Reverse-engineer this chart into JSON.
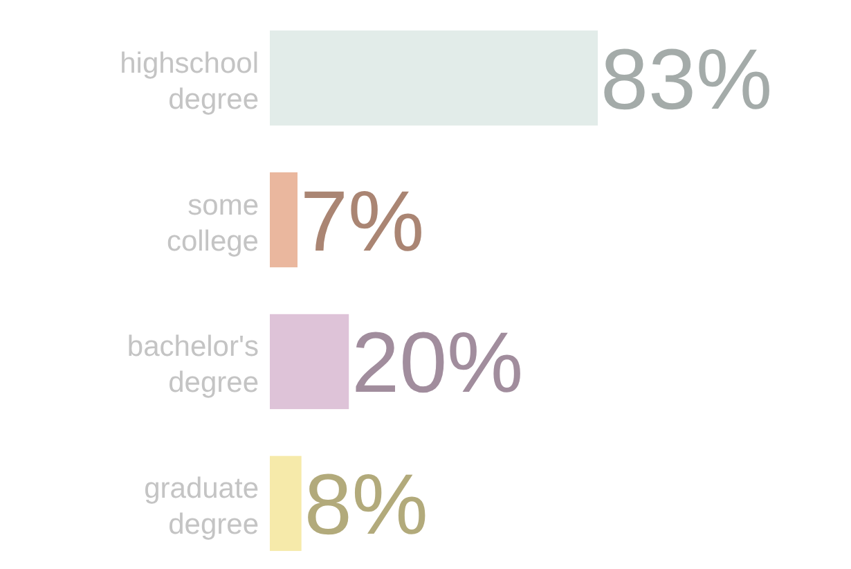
{
  "chart_data": {
    "type": "bar",
    "orientation": "horizontal",
    "categories": [
      "highschool degree",
      "some college",
      "bachelor's degree",
      "graduate degree"
    ],
    "values": [
      83,
      7,
      20,
      8
    ],
    "value_labels": [
      "83%",
      "7%",
      "20%",
      "8%"
    ],
    "colors": [
      "#e2ece9",
      "#eab79e",
      "#dec3d8",
      "#f6eaaa"
    ]
  }
}
